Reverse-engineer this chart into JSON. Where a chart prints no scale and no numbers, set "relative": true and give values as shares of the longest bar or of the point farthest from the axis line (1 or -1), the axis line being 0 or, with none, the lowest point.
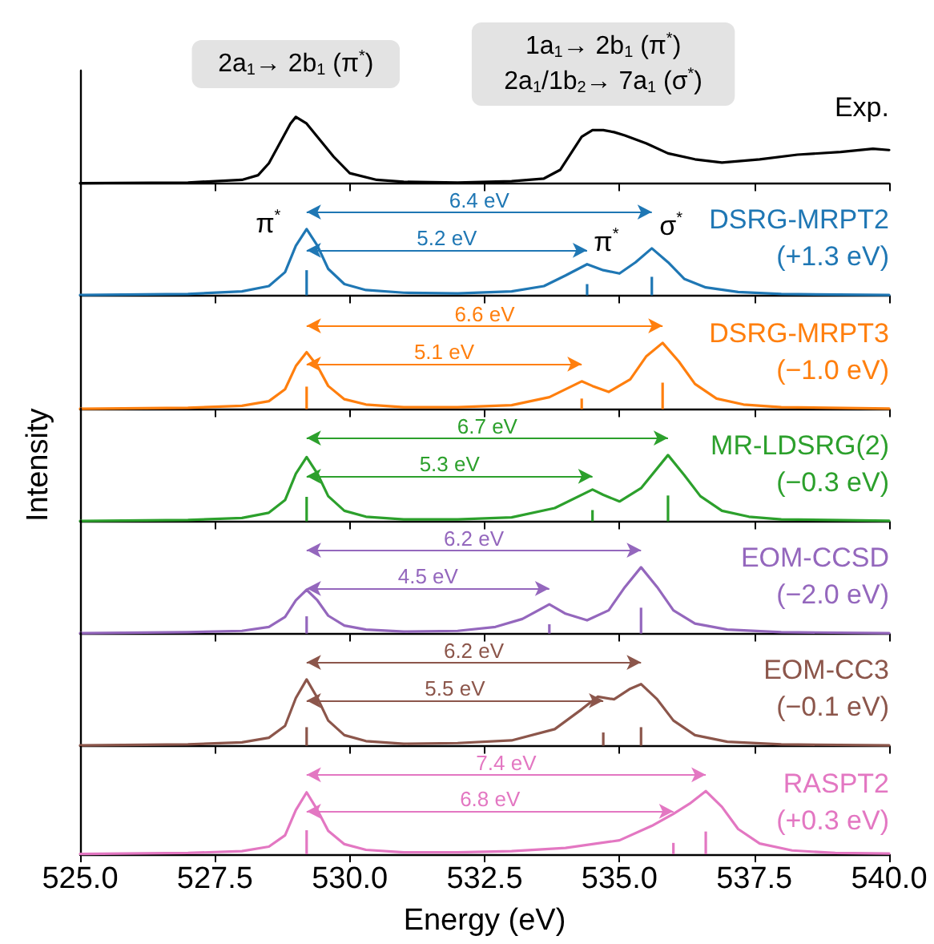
{
  "chart_data": [
    {
      "type": "line",
      "relative": true,
      "marker": "none",
      "tick_labels": false,
      "xlim": [
        525,
        540
      ],
      "xticks": [
        {
          "value": 525,
          "label": null
        },
        {
          "value": 527.5,
          "label": null
        },
        {
          "value": 530,
          "label": null
        },
        {
          "value": 532.5,
          "label": null
        },
        {
          "value": 535,
          "label": null
        },
        {
          "value": 537.5,
          "label": null
        },
        {
          "value": 540,
          "label": null
        }
      ],
      "series": [
        {
          "name": "Exp.",
          "color": "#000000",
          "x": [
            525,
            527,
            528,
            528.3,
            528.5,
            528.7,
            528.9,
            529,
            529.2,
            529.4,
            529.7,
            530,
            530.5,
            531,
            532,
            533,
            533.6,
            533.9,
            534.1,
            534.3,
            534.5,
            534.7,
            534.9,
            535.1,
            535.5,
            535.9,
            536.4,
            536.9,
            537.6,
            538.3,
            539.1,
            539.7,
            540
          ],
          "values": [
            0,
            0.01,
            0.05,
            0.12,
            0.3,
            0.6,
            0.9,
            1.0,
            0.9,
            0.7,
            0.4,
            0.15,
            0.05,
            0.02,
            0.01,
            0.03,
            0.07,
            0.2,
            0.45,
            0.7,
            0.8,
            0.8,
            0.77,
            0.72,
            0.6,
            0.45,
            0.36,
            0.31,
            0.36,
            0.43,
            0.47,
            0.52,
            0.5
          ]
        }
      ],
      "annotations": [
        "2a$_{1}$→ 2b$_{1}$ (π$^{*}$)",
        "1a$_{1}$→ 2b$_{1}$ (π$^{*}$)",
        "2a$_{1}$/1b$_{2}$→ 7a$_{1}$ (σ$^{*}$)"
      ]
    },
    {
      "type": "line",
      "relative": true,
      "marker": "none",
      "tick_labels": false,
      "xlim": [
        525,
        540
      ],
      "xticks": [
        {
          "value": 525,
          "label": null
        },
        {
          "value": 527.5,
          "label": null
        },
        {
          "value": 530,
          "label": null
        },
        {
          "value": 532.5,
          "label": null
        },
        {
          "value": 535,
          "label": null
        },
        {
          "value": 537.5,
          "label": null
        },
        {
          "value": 540,
          "label": null
        }
      ],
      "series": [
        {
          "name": "DSRG-MRPT2",
          "color": "#1f77b4",
          "x": [
            525,
            527,
            528,
            528.5,
            528.8,
            529,
            529.2,
            529.4,
            529.6,
            529.9,
            530.3,
            531,
            532,
            533,
            533.6,
            534,
            534.4,
            534.7,
            535,
            535.3,
            535.6,
            535.9,
            536.2,
            536.6,
            537.2,
            538,
            540
          ],
          "values": [
            0.005,
            0.02,
            0.06,
            0.14,
            0.35,
            0.75,
            1.0,
            0.75,
            0.4,
            0.17,
            0.08,
            0.04,
            0.03,
            0.06,
            0.14,
            0.3,
            0.47,
            0.38,
            0.33,
            0.5,
            0.71,
            0.5,
            0.25,
            0.12,
            0.05,
            0.02,
            0.005
          ]
        },
        {
          "type": "bar",
          "color": "#1f77b4",
          "x": [
            529.2,
            534.4,
            535.6
          ],
          "values": [
            0.38,
            0.17,
            0.28
          ]
        }
      ],
      "annotations": [
        "(+1.3 eV)",
        "6.4 eV",
        "5.2 eV",
        "π$^{*}$",
        "π$^{*}$",
        "σ$^{*}$"
      ]
    },
    {
      "type": "line",
      "relative": true,
      "marker": "none",
      "tick_labels": false,
      "xlim": [
        525,
        540
      ],
      "xticks": [
        {
          "value": 525,
          "label": null
        },
        {
          "value": 527.5,
          "label": null
        },
        {
          "value": 530,
          "label": null
        },
        {
          "value": 532.5,
          "label": null
        },
        {
          "value": 535,
          "label": null
        },
        {
          "value": 537.5,
          "label": null
        },
        {
          "value": 540,
          "label": null
        }
      ],
      "series": [
        {
          "name": "DSRG-MRPT3",
          "color": "#ff7f0e",
          "x": [
            525,
            527,
            528,
            528.5,
            528.8,
            529,
            529.2,
            529.4,
            529.6,
            529.9,
            530.3,
            531,
            532,
            533,
            533.7,
            534.3,
            534.5,
            534.8,
            535.2,
            535.5,
            535.8,
            536.1,
            536.4,
            536.8,
            537.3,
            538,
            540
          ],
          "values": [
            0.005,
            0.02,
            0.05,
            0.12,
            0.3,
            0.65,
            0.86,
            0.65,
            0.35,
            0.15,
            0.07,
            0.03,
            0.03,
            0.06,
            0.18,
            0.42,
            0.35,
            0.26,
            0.45,
            0.8,
            1.0,
            0.72,
            0.38,
            0.16,
            0.07,
            0.03,
            0.008
          ]
        },
        {
          "type": "bar",
          "color": "#ff7f0e",
          "x": [
            529.2,
            534.3,
            535.8
          ],
          "values": [
            0.34,
            0.16,
            0.4
          ]
        }
      ],
      "annotations": [
        "(−1.0 eV)",
        "6.6 eV",
        "5.1 eV"
      ]
    },
    {
      "type": "line",
      "relative": true,
      "marker": "none",
      "tick_labels": false,
      "ylabel": "Intensity",
      "xlim": [
        525,
        540
      ],
      "xticks": [
        {
          "value": 525,
          "label": null
        },
        {
          "value": 527.5,
          "label": null
        },
        {
          "value": 530,
          "label": null
        },
        {
          "value": 532.5,
          "label": null
        },
        {
          "value": 535,
          "label": null
        },
        {
          "value": 537.5,
          "label": null
        },
        {
          "value": 540,
          "label": null
        }
      ],
      "series": [
        {
          "name": "MR-LDSRG(2)",
          "color": "#2ca02c",
          "x": [
            525,
            527,
            528,
            528.5,
            528.8,
            529,
            529.2,
            529.4,
            529.6,
            529.9,
            530.3,
            531,
            532,
            533,
            533.8,
            534.5,
            534.7,
            535,
            535.4,
            535.9,
            536.2,
            536.5,
            536.9,
            537.4,
            538,
            540
          ],
          "values": [
            0.005,
            0.02,
            0.05,
            0.13,
            0.32,
            0.72,
            0.97,
            0.72,
            0.38,
            0.16,
            0.07,
            0.03,
            0.03,
            0.06,
            0.2,
            0.48,
            0.4,
            0.3,
            0.5,
            1.0,
            0.7,
            0.38,
            0.16,
            0.07,
            0.03,
            0.008
          ]
        },
        {
          "type": "bar",
          "color": "#2ca02c",
          "x": [
            529.2,
            534.5,
            535.9
          ],
          "values": [
            0.37,
            0.17,
            0.39
          ]
        }
      ],
      "annotations": [
        "(−0.3 eV)",
        "6.7 eV",
        "5.3 eV"
      ]
    },
    {
      "type": "line",
      "relative": true,
      "marker": "none",
      "tick_labels": false,
      "xlim": [
        525,
        540
      ],
      "xticks": [
        {
          "value": 525,
          "label": null
        },
        {
          "value": 527.5,
          "label": null
        },
        {
          "value": 530,
          "label": null
        },
        {
          "value": 532.5,
          "label": null
        },
        {
          "value": 535,
          "label": null
        },
        {
          "value": 537.5,
          "label": null
        },
        {
          "value": 540,
          "label": null
        }
      ],
      "series": [
        {
          "name": "EOM-CCSD",
          "color": "#9467bd",
          "x": [
            525,
            527,
            528,
            528.5,
            528.8,
            529,
            529.2,
            529.4,
            529.6,
            529.9,
            530.3,
            531,
            532,
            532.7,
            533.2,
            533.7,
            534,
            534.4,
            534.8,
            535.1,
            535.4,
            535.7,
            536,
            536.4,
            537,
            538,
            540
          ],
          "values": [
            0.005,
            0.02,
            0.04,
            0.1,
            0.25,
            0.5,
            0.66,
            0.5,
            0.27,
            0.12,
            0.06,
            0.03,
            0.04,
            0.1,
            0.22,
            0.44,
            0.3,
            0.2,
            0.35,
            0.7,
            1.0,
            0.7,
            0.35,
            0.15,
            0.06,
            0.02,
            0.006
          ]
        },
        {
          "type": "bar",
          "color": "#9467bd",
          "x": [
            529.2,
            533.7,
            535.4
          ],
          "values": [
            0.26,
            0.14,
            0.39
          ]
        }
      ],
      "annotations": [
        "(−2.0 eV)",
        "6.2 eV",
        "4.5 eV"
      ]
    },
    {
      "type": "line",
      "relative": true,
      "marker": "none",
      "tick_labels": false,
      "xlim": [
        525,
        540
      ],
      "xticks": [
        {
          "value": 525,
          "label": null
        },
        {
          "value": 527.5,
          "label": null
        },
        {
          "value": 530,
          "label": null
        },
        {
          "value": 532.5,
          "label": null
        },
        {
          "value": 535,
          "label": null
        },
        {
          "value": 537.5,
          "label": null
        },
        {
          "value": 540,
          "label": null
        }
      ],
      "series": [
        {
          "name": "EOM-CC3",
          "color": "#8c564b",
          "x": [
            525,
            527,
            528,
            528.5,
            528.8,
            529,
            529.2,
            529.4,
            529.6,
            529.9,
            530.3,
            531,
            532,
            533,
            533.8,
            534.3,
            534.6,
            534.9,
            535.2,
            535.4,
            535.7,
            536,
            536.4,
            537,
            538,
            540
          ],
          "values": [
            0.005,
            0.02,
            0.05,
            0.12,
            0.3,
            0.72,
            1.0,
            0.72,
            0.38,
            0.16,
            0.07,
            0.03,
            0.04,
            0.08,
            0.25,
            0.55,
            0.74,
            0.7,
            0.86,
            0.93,
            0.7,
            0.38,
            0.16,
            0.06,
            0.02,
            0.006
          ]
        },
        {
          "type": "bar",
          "color": "#8c564b",
          "x": [
            529.2,
            534.7,
            535.4
          ],
          "values": [
            0.28,
            0.2,
            0.28
          ]
        }
      ],
      "annotations": [
        "(−0.1 eV)",
        "6.2 eV",
        "5.5 eV"
      ]
    },
    {
      "type": "line",
      "relative": true,
      "marker": "none",
      "tick_labels": "x",
      "xlabel": "Energy (eV)",
      "xlim": [
        525,
        540
      ],
      "xticks": [
        {
          "value": 525,
          "label": "525.0"
        },
        {
          "value": 527.5,
          "label": "527.5"
        },
        {
          "value": 530,
          "label": "530.0"
        },
        {
          "value": 532.5,
          "label": "532.5"
        },
        {
          "value": 535,
          "label": "535.0"
        },
        {
          "value": 537.5,
          "label": "537.5"
        },
        {
          "value": 540,
          "label": "540.0"
        }
      ],
      "series": [
        {
          "name": "RASPT2",
          "color": "#e377c2",
          "x": [
            525,
            527,
            528,
            528.5,
            528.8,
            529,
            529.2,
            529.4,
            529.6,
            529.9,
            530.3,
            531,
            532,
            533,
            534,
            535,
            535.6,
            536,
            536.3,
            536.6,
            536.9,
            537.2,
            537.6,
            538.2,
            539,
            540
          ],
          "values": [
            0.005,
            0.02,
            0.05,
            0.12,
            0.3,
            0.7,
            0.98,
            0.7,
            0.37,
            0.16,
            0.07,
            0.03,
            0.03,
            0.05,
            0.1,
            0.22,
            0.45,
            0.64,
            0.8,
            1.0,
            0.75,
            0.4,
            0.17,
            0.06,
            0.02,
            0.01
          ]
        },
        {
          "type": "bar",
          "color": "#e377c2",
          "x": [
            529.2,
            536.0,
            536.6
          ],
          "values": [
            0.38,
            0.18,
            0.36
          ]
        }
      ],
      "annotations": [
        "(+0.3 eV)",
        "7.4 eV",
        "6.8 eV"
      ]
    }
  ]
}
